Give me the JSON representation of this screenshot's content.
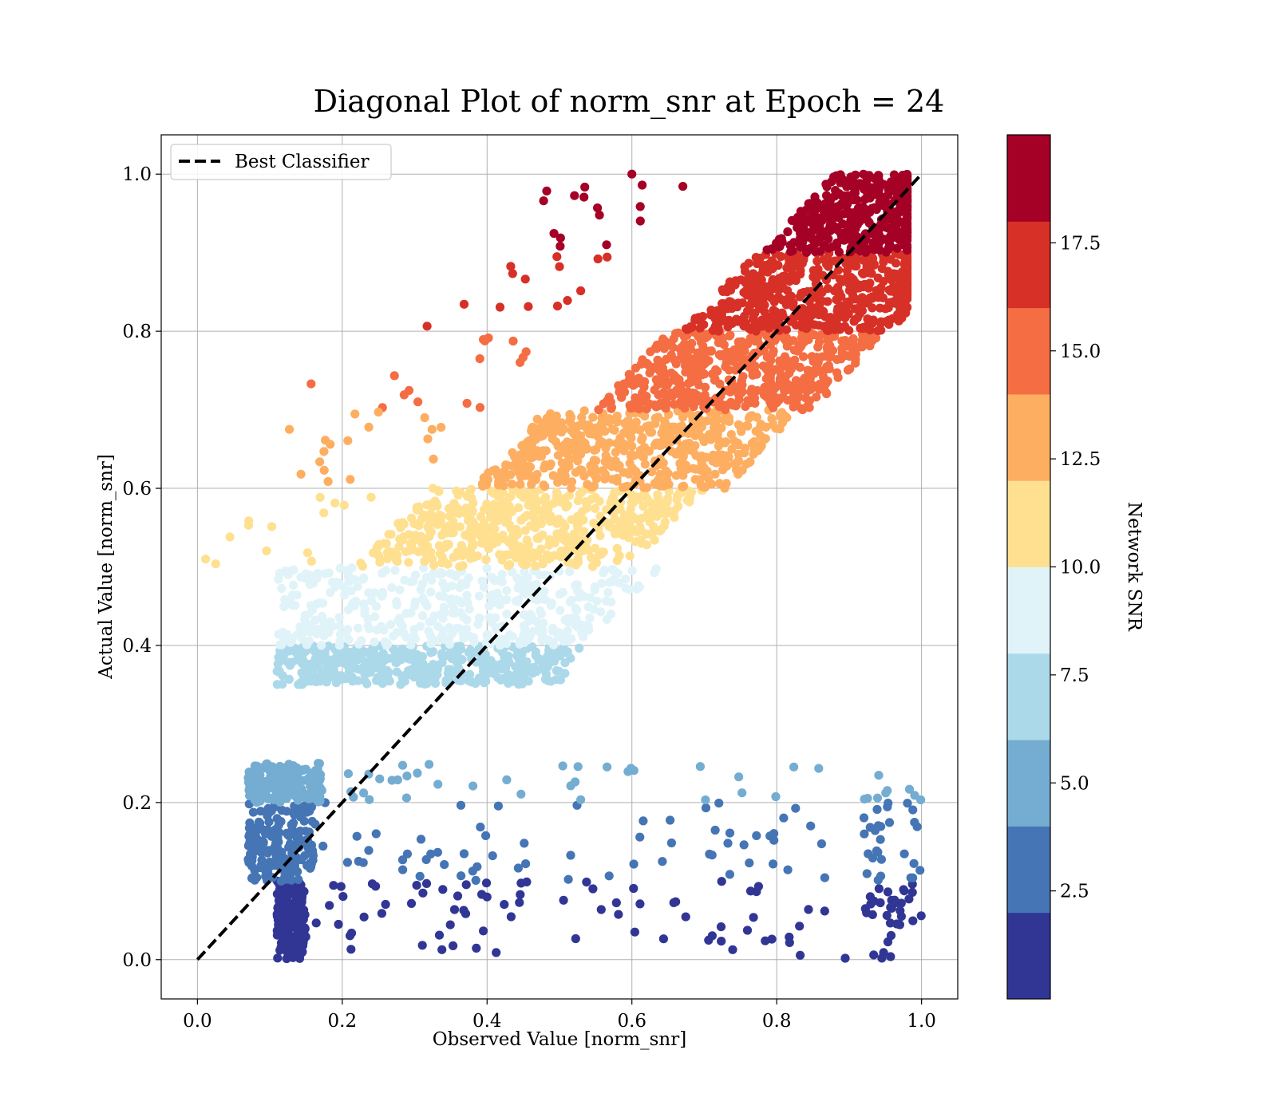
{
  "chart_data": {
    "type": "scatter",
    "title": "Diagonal Plot of norm_snr at Epoch = 24",
    "xlabel": "Observed Value [norm_snr]",
    "ylabel": "Actual Value [norm_snr]",
    "xlim": [
      -0.05,
      1.05
    ],
    "ylim": [
      -0.05,
      1.05
    ],
    "xticks": [
      "0.0",
      "0.2",
      "0.4",
      "0.6",
      "0.8",
      "1.0"
    ],
    "yticks": [
      "0.0",
      "0.2",
      "0.4",
      "0.6",
      "0.8",
      "1.0"
    ],
    "grid": true,
    "legend": {
      "placement": "upper-left",
      "entries": [
        {
          "label": "Best Classifier",
          "style": "dashed",
          "color": "#000000"
        }
      ]
    },
    "reference_line": {
      "name": "Best Classifier",
      "x": [
        0,
        1
      ],
      "y": [
        0,
        1
      ],
      "style": "dashed",
      "color": "#000000"
    },
    "colorbar": {
      "label": "Network SNR",
      "ticks": [
        "2.5",
        "5.0",
        "7.5",
        "10.0",
        "12.5",
        "15.0",
        "17.5"
      ],
      "tick_values": [
        2.5,
        5.0,
        7.5,
        10.0,
        12.5,
        15.0,
        17.5
      ],
      "range": [
        0,
        20
      ],
      "band_edges": [
        0,
        2,
        4,
        6,
        8,
        10,
        12,
        14,
        16,
        18,
        20
      ],
      "colors": [
        "#313695",
        "#4575b4",
        "#74add1",
        "#abd9e9",
        "#e0f3f8",
        "#fee090",
        "#fdae61",
        "#f46d43",
        "#d73027",
        "#a50026"
      ]
    },
    "bands": [
      {
        "y_range": [
          0.0,
          0.1
        ],
        "color": "#313695",
        "dense_x": [
          0.11,
          0.15
        ],
        "scatter_x": [
          0.06,
          1.0
        ],
        "diag_spread": null
      },
      {
        "y_range": [
          0.1,
          0.2
        ],
        "color": "#4575b4",
        "dense_x": [
          0.07,
          0.16
        ],
        "scatter_x": [
          0.06,
          1.0
        ],
        "diag_spread": null
      },
      {
        "y_range": [
          0.2,
          0.25
        ],
        "color": "#74add1",
        "dense_x": [
          0.07,
          0.17
        ],
        "scatter_x": [
          0.06,
          1.0
        ],
        "diag_spread": null
      },
      {
        "y_range": [
          0.35,
          0.4
        ],
        "color": "#abd9e9",
        "dense_x": [
          0.11,
          0.5
        ],
        "scatter_x": null,
        "diag_spread": null
      },
      {
        "y_range": [
          0.4,
          0.5
        ],
        "color": "#e0f3f8",
        "dense_x": [
          0.11,
          0.6
        ],
        "scatter_x": null,
        "diag_spread": null
      },
      {
        "y_range": [
          0.5,
          0.6
        ],
        "color": "#fee090",
        "dense_x": null,
        "scatter_x": null,
        "diag_spread": [
          -0.28,
          0.1
        ]
      },
      {
        "y_range": [
          0.6,
          0.7
        ],
        "color": "#fdae61",
        "dense_x": null,
        "scatter_x": null,
        "diag_spread": [
          -0.22,
          0.13
        ]
      },
      {
        "y_range": [
          0.7,
          0.8
        ],
        "color": "#f46d43",
        "dense_x": null,
        "scatter_x": null,
        "diag_spread": [
          -0.15,
          0.15
        ]
      },
      {
        "y_range": [
          0.8,
          0.9
        ],
        "color": "#d73027",
        "dense_x": null,
        "scatter_x": null,
        "diag_spread": [
          -0.13,
          0.16
        ]
      },
      {
        "y_range": [
          0.9,
          1.0
        ],
        "color": "#a50026",
        "dense_x": null,
        "scatter_x": null,
        "diag_spread": [
          -0.12,
          0.09
        ]
      }
    ],
    "outliers": [
      {
        "x": 0.157,
        "y": 0.733,
        "color": "#f46d43"
      },
      {
        "x": 0.39,
        "y": 0.765,
        "color": "#f46d43"
      },
      {
        "x": 0.25,
        "y": 0.697,
        "color": "#fdae61"
      },
      {
        "x": 0.127,
        "y": 0.675,
        "color": "#fdae61"
      },
      {
        "x": 0.324,
        "y": 0.675,
        "color": "#fdae61"
      },
      {
        "x": 0.143,
        "y": 0.618,
        "color": "#fdae61"
      },
      {
        "x": 0.6,
        "y": 1.0,
        "color": "#a50026"
      },
      {
        "x": 0.565,
        "y": 0.91,
        "color": "#a50026"
      }
    ]
  }
}
